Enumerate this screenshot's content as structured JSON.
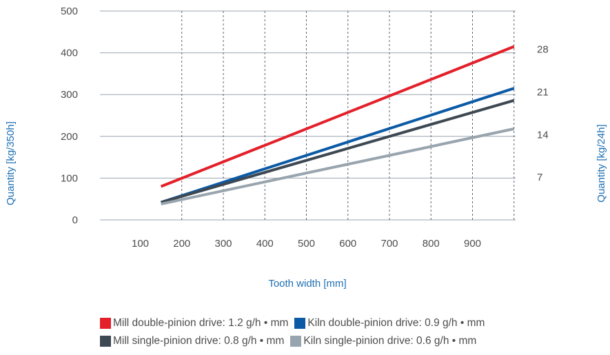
{
  "chart_data": {
    "type": "line",
    "x_label": "Tooth width [mm]",
    "y_label_left": "Quantity [kg/350h]",
    "y_label_right": "Quantity [kg/24h]",
    "x_ticks": [
      100,
      200,
      300,
      400,
      500,
      600,
      700,
      800,
      900
    ],
    "y_ticks_left": [
      0,
      100,
      200,
      300,
      400,
      500
    ],
    "y_ticks_right": [
      7,
      14,
      21,
      28
    ],
    "xlim": [
      0,
      1000
    ],
    "ylim_left": [
      0,
      500
    ],
    "ylim_right": [
      0,
      34.3
    ],
    "grid": {
      "horizontal": true,
      "vertical_dashed": true
    },
    "legend_position": "bottom",
    "series": [
      {
        "name": "Mill double-pinion drive: 1.2 g/h • mm",
        "color": "#e3202a",
        "x": [
          150,
          1000
        ],
        "y": [
          80,
          415
        ]
      },
      {
        "name": "Kiln double-pinion drive: 0.9 g/h • mm",
        "color": "#0b5aa6",
        "x": [
          150,
          1000
        ],
        "y": [
          42,
          315
        ]
      },
      {
        "name": "Mill single-pinion drive: 0.8 g/h • mm",
        "color": "#3d4852",
        "x": [
          150,
          1000
        ],
        "y": [
          42,
          286
        ]
      },
      {
        "name": "Kiln single-pinion drive: 0.6 g/h • mm",
        "color": "#98a4ae",
        "x": [
          150,
          1000
        ],
        "y": [
          38,
          218
        ]
      }
    ]
  }
}
